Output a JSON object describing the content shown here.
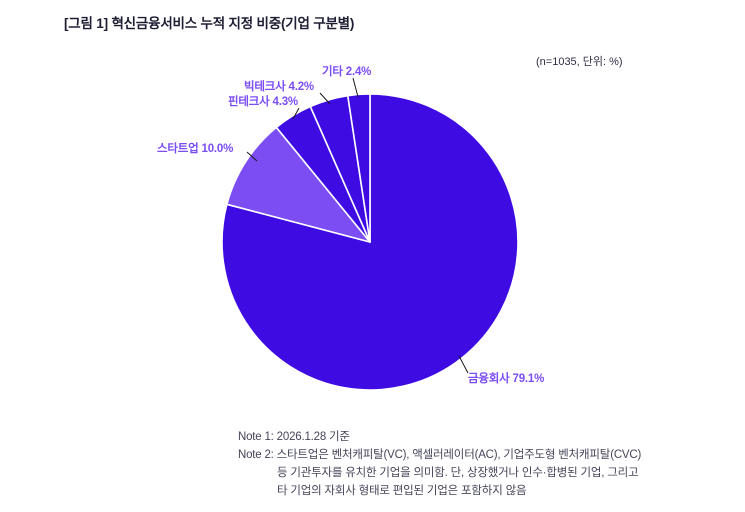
{
  "header": {
    "title": "[그림 1] 혁신금융서비스 누적 지정 비중(기업 구분별)",
    "sample_note": "(n=1035, 단위: %)"
  },
  "chart_data": {
    "type": "pie",
    "title": "혁신금융서비스 누적 지정 비중(기업 구분별)",
    "sample_size": 1035,
    "unit": "%",
    "direction": "clockwise",
    "start_angle_deg": 0,
    "slices": [
      {
        "id": "finance",
        "label": "금융회사",
        "value": 79.1,
        "color": "#3E0CE3"
      },
      {
        "id": "startup",
        "label": "스타트업",
        "value": 10.0,
        "color": "#7C4DF3"
      },
      {
        "id": "fintech",
        "label": "핀테크사",
        "value": 4.3,
        "color": "#3E0CE3"
      },
      {
        "id": "bigtech",
        "label": "빅테크사",
        "value": 4.2,
        "color": "#3E0CE3"
      },
      {
        "id": "etc",
        "label": "기타",
        "value": 2.4,
        "color": "#3E0CE3"
      }
    ],
    "legend_position": "callout-labels",
    "grid": false
  },
  "callouts": {
    "finance": "금융회사 79.1%",
    "startup": "스타트업 10.0%",
    "fintech": "핀테크사 4.3%",
    "bigtech": "빅테크사 4.2%",
    "etc": "기타 2.4%"
  },
  "notes": {
    "note1": "Note 1: 2026.1.28 기준",
    "note2_lines": [
      "Note 2: 스타트업은 벤처캐피탈(VC), 액셀러레이터(AC), 기업주도형 벤처캐피탈(CVC)",
      "등 기관투자를 유치한 기업을 의미함. 단, 상장했거나 인수·합병된 기업, 그리고",
      "타 기업의 자회사 형태로 편입된 기업은 포함하지 않음"
    ]
  },
  "colors": {
    "primary_slice": "#3E0CE3",
    "secondary_slice": "#7C4DF3",
    "label_text": "#7B4DF5",
    "leader_line": "#1a1a1a",
    "background": "#ffffff"
  }
}
